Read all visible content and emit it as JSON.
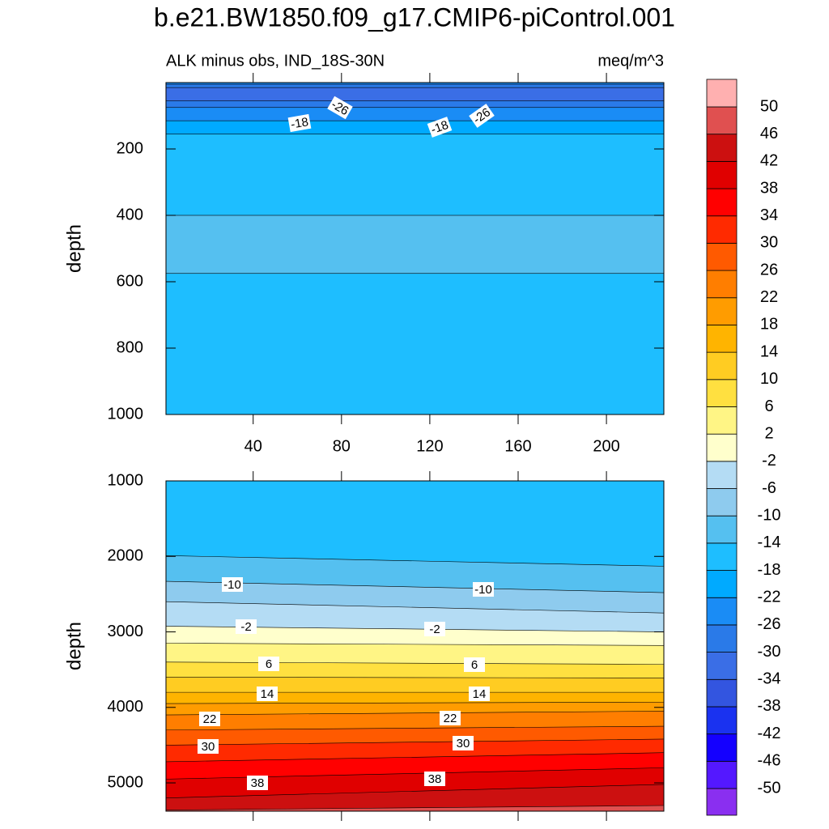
{
  "chart_data": {
    "type": "contour",
    "title": "b.e21.BW1850.f09_g17.CMIP6-piControl.001",
    "left_string": "ALK minus obs, IND_18S-30N",
    "right_string": "meq/m^3",
    "colorbar": {
      "levels": [
        -50,
        -46,
        -42,
        -38,
        -34,
        -30,
        -26,
        -22,
        -18,
        -14,
        -10,
        -6,
        -2,
        2,
        6,
        10,
        14,
        18,
        22,
        26,
        30,
        34,
        38,
        42,
        46,
        50
      ],
      "colors": [
        "#8a2ff0",
        "#5418ff",
        "#1400ff",
        "#1a32f0",
        "#3355e0",
        "#3a6ee6",
        "#2a7ae8",
        "#1a8cf5",
        "#00aaff",
        "#1ebeff",
        "#55c0f0",
        "#8ecbee",
        "#b4dcf4",
        "#ffffcc",
        "#fff585",
        "#ffe040",
        "#ffcc22",
        "#ffb400",
        "#ff9c00",
        "#ff7e00",
        "#ff5a00",
        "#ff2a00",
        "#ff0000",
        "#e00000",
        "#cc1010",
        "#e05050",
        "#ffb0b0"
      ]
    },
    "panels": [
      {
        "ylabel": "depth",
        "xlim": [
          0.5,
          226
        ],
        "xticks": [
          40,
          80,
          120,
          160,
          200
        ],
        "xtick_labels": true,
        "ylim": [
          0,
          1000
        ],
        "yticks": [
          200,
          400,
          600,
          800,
          1000
        ],
        "base_level": -18,
        "bands": [
          {
            "level": -14,
            "top": 400,
            "bottom": 575
          },
          {
            "level": -22,
            "top": 0,
            "bottom": 155
          },
          {
            "level": -26,
            "top": 0,
            "bottom": 115
          },
          {
            "level": -30,
            "top": 5,
            "bottom": 75
          },
          {
            "level": -34,
            "top": 15,
            "bottom": 55
          }
        ],
        "contour_labels": [
          -26,
          -18,
          -18,
          -26
        ]
      },
      {
        "ylabel": "depth",
        "xlim": [
          0.5,
          226
        ],
        "xticks": [
          40,
          80,
          120,
          160,
          200
        ],
        "xtick_labels": false,
        "ylim": [
          1000,
          5375
        ],
        "yticks": [
          1000,
          2000,
          3000,
          4000,
          5000
        ],
        "base_level": -18,
        "contours": [
          {
            "level": -14,
            "left": 1990,
            "right": 2130
          },
          {
            "level": -10,
            "left": 2330,
            "right": 2480
          },
          {
            "level": -6,
            "left": 2600,
            "right": 2750
          },
          {
            "level": -2,
            "left": 2925,
            "right": 3000
          },
          {
            "level": 2,
            "left": 3150,
            "right": 3180
          },
          {
            "level": 6,
            "left": 3400,
            "right": 3430
          },
          {
            "level": 10,
            "left": 3600,
            "right": 3610
          },
          {
            "level": 14,
            "left": 3800,
            "right": 3800
          },
          {
            "level": 18,
            "left": 3950,
            "right": 3930
          },
          {
            "level": 22,
            "left": 4100,
            "right": 4050
          },
          {
            "level": 26,
            "left": 4300,
            "right": 4250
          },
          {
            "level": 30,
            "left": 4500,
            "right": 4420
          },
          {
            "level": 34,
            "left": 4720,
            "right": 4600
          },
          {
            "level": 38,
            "left": 4950,
            "right": 4800
          },
          {
            "level": 42,
            "left": 5200,
            "right": 5020
          },
          {
            "level": 46,
            "left": 5360,
            "right": 5300
          }
        ],
        "contour_labels": [
          -10,
          -10,
          -2,
          -2,
          6,
          6,
          14,
          14,
          22,
          22,
          30,
          30,
          38,
          38
        ]
      }
    ]
  }
}
